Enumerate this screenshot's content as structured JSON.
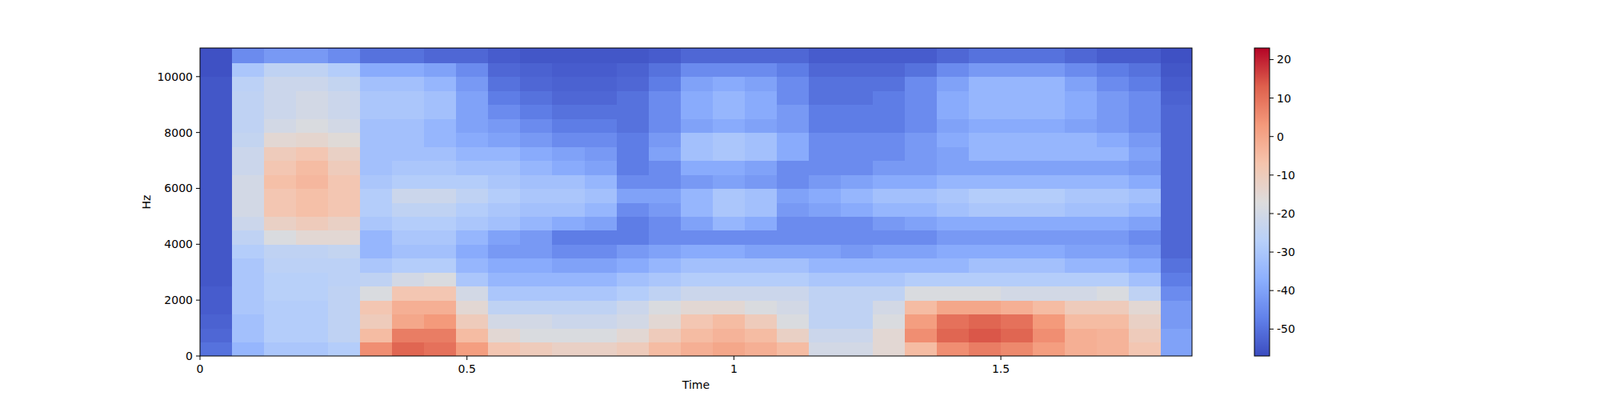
{
  "chart_data": {
    "type": "heatmap",
    "x_label": "Time",
    "y_label": "Hz",
    "x": [
      0.03,
      0.09,
      0.15,
      0.21,
      0.27,
      0.33,
      0.39,
      0.45,
      0.51,
      0.57,
      0.63,
      0.69,
      0.75,
      0.81,
      0.87,
      0.93,
      0.99,
      1.05,
      1.11,
      1.17,
      1.23,
      1.29,
      1.35,
      1.41,
      1.47,
      1.53,
      1.59,
      1.65,
      1.71,
      1.77,
      1.83
    ],
    "y": [
      250,
      750,
      1250,
      1750,
      2250,
      2750,
      3250,
      3750,
      4250,
      4750,
      5250,
      5750,
      6250,
      6750,
      7250,
      7750,
      8250,
      8750,
      9250,
      9750,
      10250,
      10750
    ],
    "values": [
      [
        -50,
        -35,
        -30,
        -30,
        -28,
        5,
        12,
        10,
        2,
        -8,
        -10,
        -12,
        -12,
        -10,
        -5,
        -2,
        0,
        -2,
        -5,
        -20,
        -20,
        -15,
        -5,
        5,
        8,
        6,
        2,
        -2,
        -3,
        -8,
        -40
      ],
      [
        -52,
        -32,
        -28,
        -28,
        -25,
        -5,
        8,
        8,
        -5,
        -15,
        -18,
        -18,
        -18,
        -15,
        -10,
        -5,
        -3,
        -5,
        -12,
        -22,
        -22,
        -15,
        5,
        12,
        14,
        12,
        5,
        -2,
        -3,
        -10,
        -40
      ],
      [
        -53,
        -32,
        -28,
        -28,
        -25,
        -10,
        0,
        3,
        -10,
        -20,
        -20,
        -22,
        -22,
        -20,
        -15,
        -8,
        -5,
        -10,
        -18,
        -25,
        -25,
        -18,
        2,
        10,
        12,
        10,
        3,
        -5,
        -5,
        -12,
        -42
      ],
      [
        -54,
        -30,
        -28,
        -28,
        -25,
        -8,
        -2,
        -2,
        -15,
        -25,
        -25,
        -25,
        -25,
        -22,
        -18,
        -15,
        -15,
        -18,
        -20,
        -25,
        -25,
        -20,
        -5,
        0,
        0,
        -2,
        -5,
        -10,
        -10,
        -15,
        -42
      ],
      [
        -54,
        -30,
        -27,
        -27,
        -25,
        -18,
        -8,
        -8,
        -20,
        -30,
        -30,
        -30,
        -30,
        -28,
        -25,
        -22,
        -22,
        -22,
        -22,
        -25,
        -25,
        -25,
        -18,
        -18,
        -18,
        -20,
        -20,
        -20,
        -18,
        -25,
        -45
      ],
      [
        -55,
        -30,
        -27,
        -27,
        -26,
        -25,
        -20,
        -18,
        -30,
        -35,
        -35,
        -35,
        -35,
        -32,
        -30,
        -28,
        -28,
        -28,
        -28,
        -30,
        -30,
        -30,
        -28,
        -28,
        -28,
        -28,
        -28,
        -28,
        -28,
        -32,
        -48
      ],
      [
        -55,
        -30,
        -26,
        -26,
        -26,
        -30,
        -28,
        -28,
        -35,
        -38,
        -38,
        -40,
        -40,
        -38,
        -35,
        -32,
        -32,
        -32,
        -32,
        -35,
        -35,
        -35,
        -35,
        -35,
        -32,
        -32,
        -32,
        -35,
        -35,
        -38,
        -50
      ],
      [
        -55,
        -28,
        -25,
        -25,
        -24,
        -35,
        -32,
        -32,
        -38,
        -42,
        -42,
        -45,
        -45,
        -42,
        -40,
        -38,
        -38,
        -40,
        -40,
        -40,
        -42,
        -40,
        -40,
        -38,
        -38,
        -38,
        -38,
        -40,
        -40,
        -42,
        -52
      ],
      [
        -55,
        -25,
        -18,
        -15,
        -15,
        -35,
        -30,
        -30,
        -35,
        -40,
        -42,
        -48,
        -48,
        -48,
        -45,
        -45,
        -45,
        -45,
        -45,
        -45,
        -45,
        -45,
        -45,
        -42,
        -42,
        -42,
        -42,
        -42,
        -42,
        -45,
        -52
      ],
      [
        -55,
        -22,
        -12,
        -10,
        -12,
        -30,
        -28,
        -28,
        -30,
        -32,
        -35,
        -38,
        -40,
        -48,
        -45,
        -40,
        -35,
        -38,
        -45,
        -45,
        -45,
        -42,
        -40,
        -38,
        -38,
        -38,
        -38,
        -38,
        -38,
        -40,
        -52
      ],
      [
        -55,
        -20,
        -8,
        -6,
        -8,
        -28,
        -25,
        -25,
        -28,
        -30,
        -32,
        -32,
        -35,
        -45,
        -42,
        -35,
        -30,
        -32,
        -42,
        -40,
        -38,
        -35,
        -35,
        -32,
        -30,
        -30,
        -30,
        -32,
        -32,
        -35,
        -52
      ],
      [
        -55,
        -20,
        -8,
        -6,
        -8,
        -28,
        -22,
        -22,
        -25,
        -28,
        -30,
        -30,
        -32,
        -40,
        -40,
        -35,
        -30,
        -32,
        -40,
        -38,
        -35,
        -32,
        -32,
        -30,
        -28,
        -28,
        -28,
        -30,
        -30,
        -32,
        -52
      ],
      [
        -55,
        -20,
        -6,
        -4,
        -8,
        -30,
        -28,
        -28,
        -28,
        -30,
        -32,
        -32,
        -35,
        -45,
        -45,
        -42,
        -40,
        -42,
        -45,
        -42,
        -40,
        -38,
        -38,
        -35,
        -35,
        -35,
        -35,
        -35,
        -35,
        -38,
        -52
      ],
      [
        -55,
        -22,
        -8,
        -5,
        -10,
        -32,
        -30,
        -30,
        -32,
        -32,
        -35,
        -38,
        -40,
        -48,
        -45,
        -38,
        -38,
        -40,
        -45,
        -45,
        -45,
        -42,
        -42,
        -40,
        -40,
        -40,
        -40,
        -40,
        -40,
        -42,
        -52
      ],
      [
        -55,
        -22,
        -10,
        -8,
        -12,
        -32,
        -32,
        -32,
        -35,
        -35,
        -38,
        -40,
        -42,
        -48,
        -40,
        -32,
        -30,
        -32,
        -38,
        -45,
        -45,
        -45,
        -42,
        -40,
        -35,
        -35,
        -35,
        -35,
        -35,
        -40,
        -52
      ],
      [
        -55,
        -24,
        -15,
        -14,
        -16,
        -32,
        -32,
        -35,
        -38,
        -40,
        -42,
        -45,
        -45,
        -48,
        -42,
        -32,
        -30,
        -32,
        -38,
        -45,
        -45,
        -45,
        -42,
        -38,
        -35,
        -35,
        -35,
        -35,
        -38,
        -42,
        -52
      ],
      [
        -55,
        -25,
        -20,
        -18,
        -20,
        -32,
        -32,
        -35,
        -40,
        -42,
        -45,
        -48,
        -48,
        -50,
        -45,
        -40,
        -38,
        -40,
        -42,
        -48,
        -48,
        -48,
        -45,
        -40,
        -38,
        -38,
        -38,
        -40,
        -42,
        -45,
        -52
      ],
      [
        -55,
        -25,
        -22,
        -20,
        -22,
        -30,
        -30,
        -32,
        -40,
        -45,
        -48,
        -50,
        -50,
        -50,
        -45,
        -38,
        -35,
        -38,
        -42,
        -48,
        -48,
        -48,
        -45,
        -38,
        -35,
        -35,
        -35,
        -38,
        -42,
        -45,
        -52
      ],
      [
        -55,
        -25,
        -22,
        -20,
        -22,
        -30,
        -30,
        -32,
        -40,
        -48,
        -50,
        -52,
        -52,
        -50,
        -45,
        -38,
        -35,
        -38,
        -45,
        -50,
        -50,
        -48,
        -45,
        -38,
        -35,
        -35,
        -35,
        -38,
        -42,
        -45,
        -53
      ],
      [
        -55,
        -26,
        -22,
        -22,
        -24,
        -32,
        -32,
        -35,
        -42,
        -50,
        -52,
        -53,
        -53,
        -52,
        -48,
        -40,
        -38,
        -40,
        -45,
        -50,
        -50,
        -50,
        -45,
        -40,
        -35,
        -35,
        -35,
        -40,
        -45,
        -48,
        -54
      ],
      [
        -56,
        -30,
        -25,
        -25,
        -28,
        -38,
        -38,
        -40,
        -45,
        -52,
        -53,
        -54,
        -54,
        -53,
        -50,
        -45,
        -45,
        -45,
        -48,
        -52,
        -52,
        -52,
        -50,
        -45,
        -42,
        -42,
        -42,
        -45,
        -48,
        -50,
        -55
      ],
      [
        -56,
        -45,
        -42,
        -42,
        -45,
        -50,
        -50,
        -52,
        -52,
        -54,
        -55,
        -55,
        -55,
        -55,
        -54,
        -52,
        -52,
        -52,
        -52,
        -54,
        -54,
        -54,
        -54,
        -52,
        -50,
        -50,
        -50,
        -52,
        -54,
        -54,
        -56
      ]
    ],
    "xlim": [
      0,
      1.858
    ],
    "ylim": [
      0,
      11025
    ],
    "xticks": [
      0,
      0.5,
      1,
      1.5
    ],
    "yticks": [
      0,
      2000,
      4000,
      6000,
      8000,
      10000
    ],
    "colorbar_range": [
      -57,
      23
    ],
    "colorbar_ticks": [
      -50,
      -40,
      -30,
      -20,
      -10,
      0,
      10,
      20
    ]
  }
}
